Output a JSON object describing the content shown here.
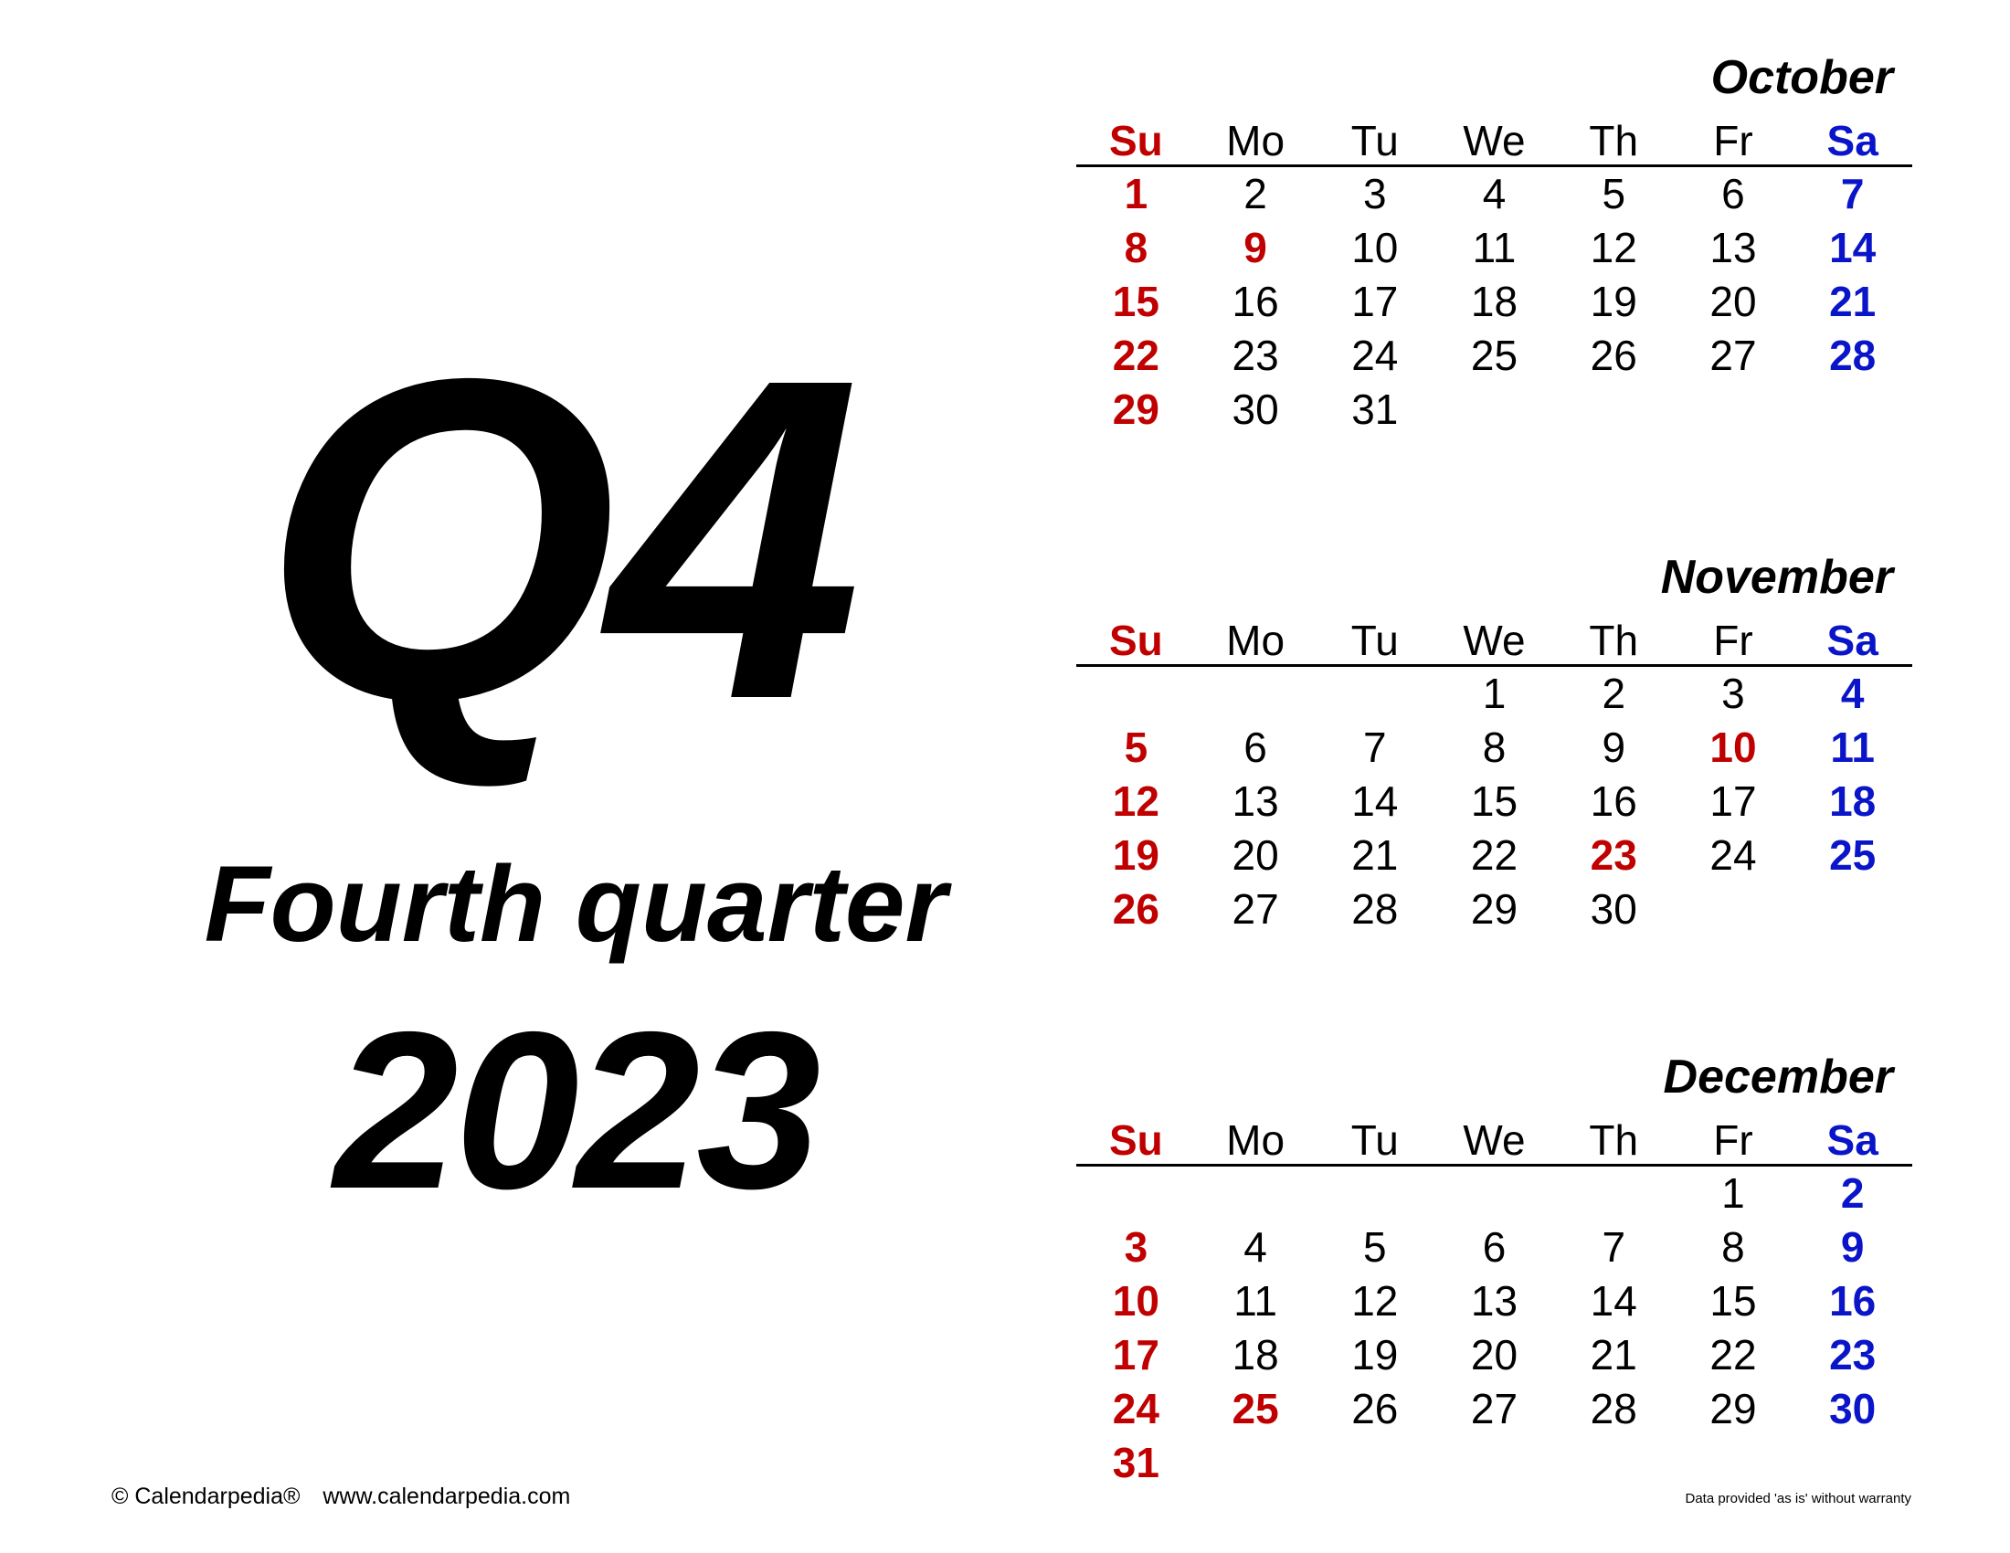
{
  "cover": {
    "quarter_code": "Q4",
    "quarter_name": "Fourth quarter",
    "year": "2023"
  },
  "weekdays": [
    "Su",
    "Mo",
    "Tu",
    "We",
    "Th",
    "Fr",
    "Sa"
  ],
  "colors": {
    "sunday_holiday": "#c00000",
    "saturday": "#0a14c8",
    "text": "#000000"
  },
  "months": [
    {
      "name": "October",
      "weeks": [
        [
          "1",
          "2",
          "3",
          "4",
          "5",
          "6",
          "7"
        ],
        [
          "8",
          "9",
          "10",
          "11",
          "12",
          "13",
          "14"
        ],
        [
          "15",
          "16",
          "17",
          "18",
          "19",
          "20",
          "21"
        ],
        [
          "22",
          "23",
          "24",
          "25",
          "26",
          "27",
          "28"
        ],
        [
          "29",
          "30",
          "31",
          "",
          "",
          "",
          ""
        ]
      ],
      "holidays": [
        "9"
      ]
    },
    {
      "name": "November",
      "weeks": [
        [
          "",
          "",
          "",
          "1",
          "2",
          "3",
          "4"
        ],
        [
          "5",
          "6",
          "7",
          "8",
          "9",
          "10",
          "11"
        ],
        [
          "12",
          "13",
          "14",
          "15",
          "16",
          "17",
          "18"
        ],
        [
          "19",
          "20",
          "21",
          "22",
          "23",
          "24",
          "25"
        ],
        [
          "26",
          "27",
          "28",
          "29",
          "30",
          "",
          ""
        ]
      ],
      "holidays": [
        "10",
        "11",
        "23"
      ]
    },
    {
      "name": "December",
      "weeks": [
        [
          "",
          "",
          "",
          "",
          "",
          "1",
          "2"
        ],
        [
          "3",
          "4",
          "5",
          "6",
          "7",
          "8",
          "9"
        ],
        [
          "10",
          "11",
          "12",
          "13",
          "14",
          "15",
          "16"
        ],
        [
          "17",
          "18",
          "19",
          "20",
          "21",
          "22",
          "23"
        ],
        [
          "24",
          "25",
          "26",
          "27",
          "28",
          "29",
          "30"
        ],
        [
          "31",
          "",
          "",
          "",
          "",
          "",
          ""
        ]
      ],
      "holidays": [
        "25"
      ]
    }
  ],
  "footer": {
    "copyright": "© Calendarpedia®",
    "website": "www.calendarpedia.com",
    "disclaimer": "Data provided 'as is' without warranty"
  }
}
